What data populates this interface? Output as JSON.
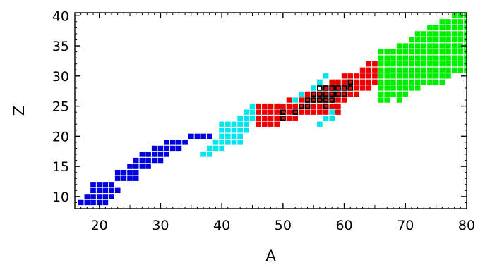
{
  "chart_data": {
    "type": "scatter",
    "title": "",
    "xlabel": "A",
    "ylabel": "Z",
    "xlim": [
      16,
      80
    ],
    "ylim": [
      8,
      40.5
    ],
    "xticks": [
      "20",
      "30",
      "40",
      "50",
      "60",
      "70",
      "80"
    ],
    "yticks": [
      "10",
      "15",
      "20",
      "25",
      "30",
      "35",
      "40"
    ],
    "grid": false,
    "legend": "none",
    "series": [
      {
        "color": "#0000dd",
        "points": [
          [
            17,
            9
          ],
          [
            18,
            9
          ],
          [
            19,
            9
          ],
          [
            20,
            9
          ],
          [
            21,
            9
          ],
          [
            18,
            10
          ],
          [
            19,
            10
          ],
          [
            20,
            10
          ],
          [
            21,
            10
          ],
          [
            22,
            10
          ],
          [
            19,
            11
          ],
          [
            20,
            11
          ],
          [
            21,
            11
          ],
          [
            22,
            11
          ],
          [
            23,
            11
          ],
          [
            19,
            12
          ],
          [
            20,
            12
          ],
          [
            21,
            12
          ],
          [
            22,
            12
          ],
          [
            23,
            13
          ],
          [
            24,
            13
          ],
          [
            25,
            13
          ],
          [
            26,
            13
          ],
          [
            23,
            14
          ],
          [
            24,
            14
          ],
          [
            25,
            14
          ],
          [
            26,
            14
          ],
          [
            25,
            15
          ],
          [
            26,
            15
          ],
          [
            27,
            15
          ],
          [
            28,
            15
          ],
          [
            26,
            16
          ],
          [
            27,
            16
          ],
          [
            28,
            16
          ],
          [
            29,
            16
          ],
          [
            30,
            16
          ],
          [
            27,
            17
          ],
          [
            28,
            17
          ],
          [
            29,
            17
          ],
          [
            30,
            17
          ],
          [
            31,
            17
          ],
          [
            29,
            18
          ],
          [
            30,
            18
          ],
          [
            31,
            18
          ],
          [
            32,
            18
          ],
          [
            33,
            18
          ],
          [
            31,
            19
          ],
          [
            32,
            19
          ],
          [
            33,
            19
          ],
          [
            34,
            19
          ],
          [
            35,
            20
          ],
          [
            36,
            20
          ],
          [
            37,
            20
          ],
          [
            38,
            20
          ]
        ]
      },
      {
        "color": "#00e5ee",
        "points": [
          [
            37,
            17
          ],
          [
            38,
            17
          ],
          [
            38,
            18
          ],
          [
            39,
            18
          ],
          [
            40,
            18
          ],
          [
            39,
            19
          ],
          [
            40,
            19
          ],
          [
            41,
            19
          ],
          [
            42,
            19
          ],
          [
            43,
            19
          ],
          [
            40,
            20
          ],
          [
            41,
            20
          ],
          [
            42,
            20
          ],
          [
            43,
            20
          ],
          [
            40,
            21
          ],
          [
            41,
            21
          ],
          [
            42,
            21
          ],
          [
            43,
            21
          ],
          [
            44,
            21
          ],
          [
            40,
            22
          ],
          [
            41,
            22
          ],
          [
            42,
            22
          ],
          [
            43,
            22
          ],
          [
            44,
            22
          ],
          [
            43,
            23
          ],
          [
            44,
            23
          ],
          [
            45,
            23
          ],
          [
            44,
            24
          ],
          [
            45,
            24
          ],
          [
            45,
            25
          ],
          [
            56,
            22
          ],
          [
            57,
            23
          ],
          [
            58,
            23
          ],
          [
            58,
            24
          ],
          [
            59,
            24
          ],
          [
            53,
            27
          ],
          [
            52,
            26
          ],
          [
            57,
            30
          ],
          [
            56,
            29
          ],
          [
            55,
            28
          ]
        ]
      },
      {
        "color": "#ee0000",
        "points": [
          [
            46,
            22
          ],
          [
            47,
            22
          ],
          [
            48,
            22
          ],
          [
            49,
            22
          ],
          [
            46,
            23
          ],
          [
            47,
            23
          ],
          [
            48,
            23
          ],
          [
            49,
            23
          ],
          [
            50,
            23
          ],
          [
            51,
            23
          ],
          [
            52,
            23
          ],
          [
            46,
            24
          ],
          [
            47,
            24
          ],
          [
            48,
            24
          ],
          [
            49,
            24
          ],
          [
            50,
            24
          ],
          [
            51,
            24
          ],
          [
            52,
            24
          ],
          [
            53,
            24
          ],
          [
            54,
            24
          ],
          [
            55,
            24
          ],
          [
            56,
            24
          ],
          [
            57,
            24
          ],
          [
            59,
            24
          ],
          [
            46,
            25
          ],
          [
            47,
            25
          ],
          [
            48,
            25
          ],
          [
            49,
            25
          ],
          [
            50,
            25
          ],
          [
            51,
            25
          ],
          [
            52,
            25
          ],
          [
            53,
            25
          ],
          [
            54,
            25
          ],
          [
            55,
            25
          ],
          [
            56,
            25
          ],
          [
            57,
            25
          ],
          [
            58,
            25
          ],
          [
            59,
            25
          ],
          [
            51,
            26
          ],
          [
            53,
            26
          ],
          [
            54,
            26
          ],
          [
            55,
            26
          ],
          [
            56,
            26
          ],
          [
            57,
            26
          ],
          [
            58,
            26
          ],
          [
            59,
            26
          ],
          [
            60,
            26
          ],
          [
            54,
            27
          ],
          [
            55,
            27
          ],
          [
            56,
            27
          ],
          [
            57,
            27
          ],
          [
            58,
            27
          ],
          [
            59,
            27
          ],
          [
            60,
            27
          ],
          [
            61,
            27
          ],
          [
            62,
            27
          ],
          [
            57,
            28
          ],
          [
            58,
            28
          ],
          [
            59,
            28
          ],
          [
            60,
            28
          ],
          [
            61,
            28
          ],
          [
            62,
            28
          ],
          [
            63,
            28
          ],
          [
            64,
            28
          ],
          [
            58,
            29
          ],
          [
            59,
            29
          ],
          [
            60,
            29
          ],
          [
            61,
            29
          ],
          [
            62,
            29
          ],
          [
            63,
            29
          ],
          [
            64,
            29
          ],
          [
            65,
            29
          ],
          [
            60,
            30
          ],
          [
            61,
            30
          ],
          [
            62,
            30
          ],
          [
            63,
            30
          ],
          [
            64,
            30
          ],
          [
            65,
            30
          ],
          [
            63,
            31
          ],
          [
            64,
            31
          ],
          [
            65,
            31
          ],
          [
            64,
            32
          ],
          [
            65,
            32
          ]
        ]
      },
      {
        "color": "#00ee00",
        "points": [
          [
            66,
            26
          ],
          [
            67,
            26
          ],
          [
            69,
            26
          ],
          [
            66,
            27
          ],
          [
            67,
            27
          ],
          [
            68,
            27
          ],
          [
            69,
            27
          ],
          [
            70,
            27
          ],
          [
            66,
            28
          ],
          [
            67,
            28
          ],
          [
            68,
            28
          ],
          [
            69,
            28
          ],
          [
            70,
            28
          ],
          [
            71,
            28
          ],
          [
            72,
            28
          ],
          [
            66,
            29
          ],
          [
            67,
            29
          ],
          [
            68,
            29
          ],
          [
            69,
            29
          ],
          [
            70,
            29
          ],
          [
            71,
            29
          ],
          [
            72,
            29
          ],
          [
            73,
            29
          ],
          [
            74,
            29
          ],
          [
            75,
            29
          ],
          [
            76,
            29
          ],
          [
            66,
            30
          ],
          [
            67,
            30
          ],
          [
            68,
            30
          ],
          [
            69,
            30
          ],
          [
            70,
            30
          ],
          [
            71,
            30
          ],
          [
            72,
            30
          ],
          [
            73,
            30
          ],
          [
            74,
            30
          ],
          [
            75,
            30
          ],
          [
            76,
            30
          ],
          [
            77,
            30
          ],
          [
            66,
            31
          ],
          [
            67,
            31
          ],
          [
            68,
            31
          ],
          [
            69,
            31
          ],
          [
            70,
            31
          ],
          [
            71,
            31
          ],
          [
            72,
            31
          ],
          [
            73,
            31
          ],
          [
            74,
            31
          ],
          [
            75,
            31
          ],
          [
            76,
            31
          ],
          [
            77,
            31
          ],
          [
            78,
            31
          ],
          [
            79,
            31
          ],
          [
            80,
            31
          ],
          [
            66,
            32
          ],
          [
            67,
            32
          ],
          [
            68,
            32
          ],
          [
            69,
            32
          ],
          [
            70,
            32
          ],
          [
            71,
            32
          ],
          [
            72,
            32
          ],
          [
            73,
            32
          ],
          [
            74,
            32
          ],
          [
            75,
            32
          ],
          [
            76,
            32
          ],
          [
            77,
            32
          ],
          [
            78,
            32
          ],
          [
            79,
            32
          ],
          [
            80,
            32
          ],
          [
            66,
            33
          ],
          [
            67,
            33
          ],
          [
            68,
            33
          ],
          [
            69,
            33
          ],
          [
            70,
            33
          ],
          [
            71,
            33
          ],
          [
            72,
            33
          ],
          [
            73,
            33
          ],
          [
            74,
            33
          ],
          [
            75,
            33
          ],
          [
            76,
            33
          ],
          [
            77,
            33
          ],
          [
            78,
            33
          ],
          [
            79,
            33
          ],
          [
            80,
            33
          ],
          [
            66,
            34
          ],
          [
            67,
            34
          ],
          [
            68,
            34
          ],
          [
            69,
            34
          ],
          [
            70,
            34
          ],
          [
            71,
            34
          ],
          [
            72,
            34
          ],
          [
            73,
            34
          ],
          [
            74,
            34
          ],
          [
            75,
            34
          ],
          [
            76,
            34
          ],
          [
            77,
            34
          ],
          [
            78,
            34
          ],
          [
            79,
            34
          ],
          [
            80,
            34
          ],
          [
            69,
            35
          ],
          [
            70,
            35
          ],
          [
            71,
            35
          ],
          [
            72,
            35
          ],
          [
            73,
            35
          ],
          [
            74,
            35
          ],
          [
            75,
            35
          ],
          [
            76,
            35
          ],
          [
            77,
            35
          ],
          [
            78,
            35
          ],
          [
            79,
            35
          ],
          [
            80,
            35
          ],
          [
            71,
            36
          ],
          [
            72,
            36
          ],
          [
            73,
            36
          ],
          [
            74,
            36
          ],
          [
            75,
            36
          ],
          [
            76,
            36
          ],
          [
            77,
            36
          ],
          [
            78,
            36
          ],
          [
            79,
            36
          ],
          [
            80,
            36
          ],
          [
            72,
            37
          ],
          [
            73,
            37
          ],
          [
            74,
            37
          ],
          [
            75,
            37
          ],
          [
            76,
            37
          ],
          [
            77,
            37
          ],
          [
            78,
            37
          ],
          [
            79,
            37
          ],
          [
            80,
            37
          ],
          [
            74,
            38
          ],
          [
            75,
            38
          ],
          [
            76,
            38
          ],
          [
            77,
            38
          ],
          [
            78,
            38
          ],
          [
            79,
            38
          ],
          [
            80,
            38
          ],
          [
            76,
            39
          ],
          [
            77,
            39
          ],
          [
            78,
            39
          ],
          [
            79,
            39
          ],
          [
            80,
            39
          ],
          [
            78,
            40
          ],
          [
            79,
            40
          ],
          [
            80,
            40
          ]
        ]
      }
    ],
    "highlighted": {
      "color": "#000000",
      "points": [
        [
          50,
          23
        ],
        [
          50,
          24
        ],
        [
          52,
          24
        ],
        [
          53,
          25
        ],
        [
          54,
          25
        ],
        [
          54,
          26
        ],
        [
          55,
          26
        ],
        [
          55,
          27
        ],
        [
          56,
          26
        ],
        [
          56,
          27
        ],
        [
          56,
          28
        ],
        [
          57,
          25
        ],
        [
          57,
          26
        ],
        [
          57,
          27
        ],
        [
          57,
          28
        ],
        [
          58,
          26
        ],
        [
          58,
          27
        ],
        [
          58,
          28
        ],
        [
          59,
          27
        ],
        [
          59,
          28
        ],
        [
          60,
          27
        ],
        [
          60,
          28
        ],
        [
          61,
          28
        ],
        [
          61,
          29
        ]
      ]
    }
  }
}
